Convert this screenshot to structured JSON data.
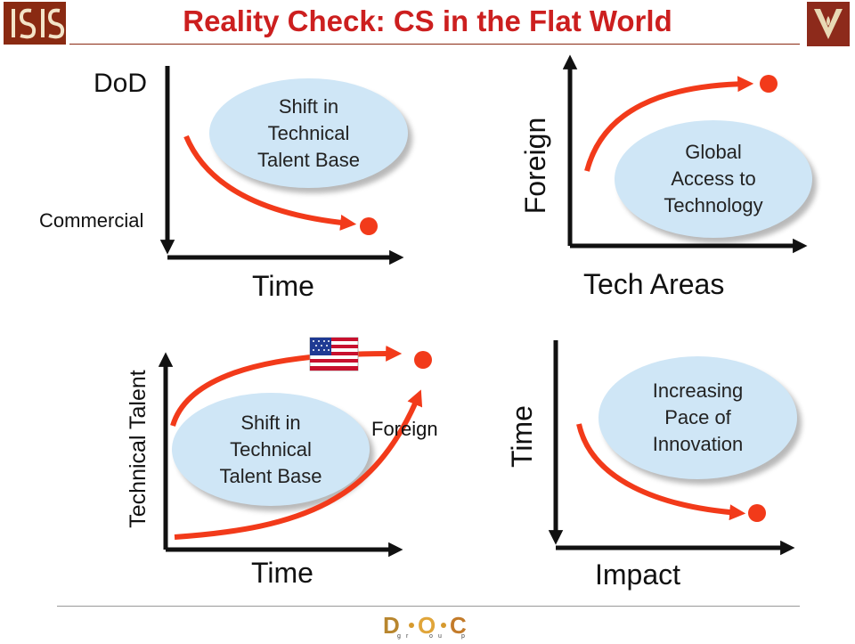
{
  "header": {
    "title": "Reality Check: CS in the Flat World"
  },
  "colors": {
    "accent": "#cc1f1f",
    "curve": "#f23a1a",
    "bubble": "#cfe6f6",
    "axis": "#111111"
  },
  "logos": {
    "left": {
      "text": "ISIS",
      "icon": "isis-logo-icon"
    },
    "right": {
      "icon": "vanderbilt-oak-leaf-icon"
    },
    "footer": {
      "text": "DOC",
      "sub": [
        "g",
        "r",
        "o",
        "u",
        "p"
      ],
      "icon": "doc-group-logo-icon"
    }
  },
  "panels": [
    {
      "name": "panel-dod-commercial",
      "y_top": "DoD",
      "y_bottom": "Commercial",
      "x_label": "Time",
      "bubble": [
        "Shift in",
        "Technical",
        "Talent Base"
      ]
    },
    {
      "name": "panel-foreign-tech",
      "y_label": "Foreign",
      "x_label": "Tech Areas",
      "bubble": [
        "Global",
        "Access to",
        "Technology"
      ]
    },
    {
      "name": "panel-technical-talent",
      "y_label": "Technical Talent",
      "x_label": "Time",
      "curve_label": "Foreign",
      "flag": "us-flag-icon",
      "bubble": [
        "Shift in",
        "Technical",
        "Talent Base"
      ]
    },
    {
      "name": "panel-pace-innovation",
      "y_label": "Time",
      "x_label": "Impact",
      "bubble": [
        "Increasing",
        "Pace of",
        "Innovation"
      ]
    }
  ]
}
